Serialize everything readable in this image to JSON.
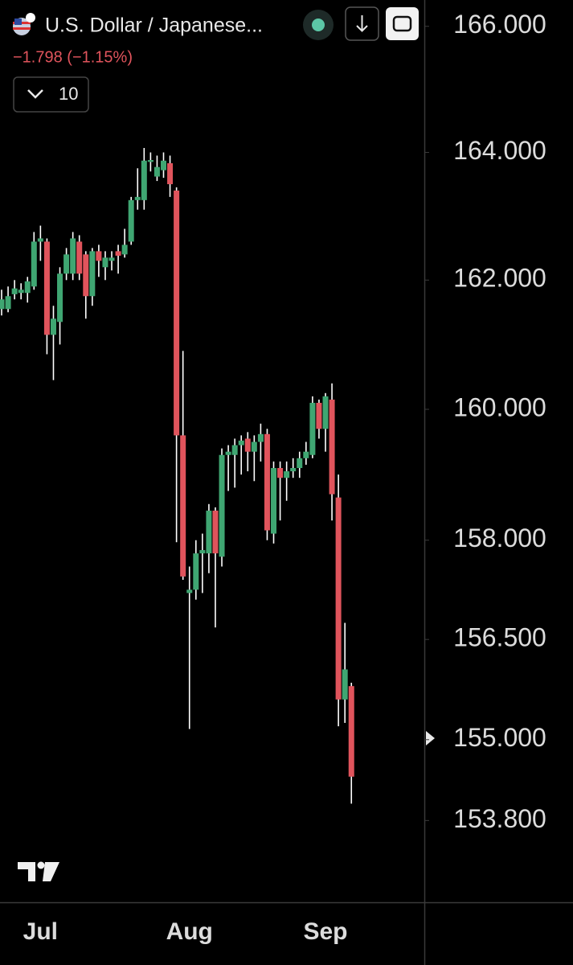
{
  "chart_data": {
    "type": "candlestick",
    "title": "U.S. Dollar / Japanese...",
    "subtitle": "−1.798 (−1.15%)",
    "interval": 10,
    "log_scale": true,
    "up_color": "#3fa672",
    "down_color": "#e0545c",
    "wick_color": "#ffffff",
    "categories": [
      null,
      null,
      null,
      null,
      null,
      null,
      "Jul",
      null,
      null,
      null,
      null,
      null,
      null,
      null,
      null,
      null,
      null,
      null,
      null,
      null,
      null,
      null,
      null,
      null,
      null,
      null,
      null,
      null,
      null,
      "Aug",
      null,
      null,
      null,
      null,
      null,
      null,
      null,
      null,
      null,
      null,
      null,
      null,
      null,
      null,
      null,
      null,
      null,
      null,
      null,
      null,
      "Sep",
      null,
      null,
      null,
      null
    ],
    "open": [
      161.55,
      161.55,
      161.78,
      161.8,
      161.8,
      161.9,
      162.6,
      162.6,
      161.15,
      161.35,
      162.1,
      162.1,
      162.6,
      162.4,
      161.75,
      162.45,
      162.2,
      162.3,
      162.45,
      162.4,
      162.6,
      163.25,
      163.25,
      163.85,
      163.62,
      163.72,
      163.83,
      163.4,
      159.6,
      157.2,
      157.25,
      157.8,
      157.8,
      158.45,
      157.75,
      159.3,
      159.3,
      159.45,
      159.55,
      159.35,
      159.5,
      159.62,
      158.1,
      159.1,
      158.95,
      159.05,
      159.1,
      159.25,
      159.3,
      160.1,
      159.7,
      160.15,
      158.65,
      155.6,
      155.8
    ],
    "high": [
      161.85,
      161.9,
      162.0,
      161.95,
      162.05,
      162.75,
      162.85,
      162.65,
      161.6,
      162.2,
      162.5,
      162.75,
      162.7,
      162.45,
      162.5,
      162.55,
      162.45,
      162.45,
      162.55,
      162.8,
      163.3,
      163.75,
      164.07,
      164.0,
      163.95,
      164.0,
      163.95,
      163.45,
      160.9,
      157.6,
      158.0,
      158.1,
      158.55,
      158.5,
      159.4,
      159.45,
      159.55,
      159.6,
      159.65,
      159.6,
      159.78,
      159.7,
      159.2,
      159.2,
      159.2,
      159.25,
      159.35,
      159.5,
      160.2,
      160.15,
      160.25,
      160.4,
      159.0,
      156.75,
      155.85
    ],
    "low": [
      161.45,
      161.5,
      161.7,
      161.7,
      161.65,
      161.85,
      162.3,
      160.85,
      160.45,
      161.0,
      162.0,
      162.0,
      162.0,
      161.4,
      161.6,
      162.05,
      162.0,
      162.15,
      162.1,
      162.35,
      162.55,
      163.1,
      163.1,
      163.7,
      163.55,
      163.6,
      163.3,
      157.97,
      157.4,
      155.16,
      157.1,
      157.2,
      157.5,
      156.68,
      157.6,
      158.75,
      158.8,
      159.0,
      159.05,
      158.9,
      159.2,
      158.0,
      157.95,
      158.3,
      158.6,
      158.95,
      158.95,
      159.15,
      159.25,
      159.55,
      159.35,
      158.3,
      155.2,
      155.25,
      154.05
    ],
    "close": [
      161.7,
      161.75,
      161.87,
      161.85,
      161.98,
      162.6,
      162.65,
      161.15,
      161.4,
      162.1,
      162.4,
      162.65,
      162.1,
      161.75,
      162.45,
      162.3,
      162.35,
      162.35,
      162.38,
      162.55,
      163.25,
      163.3,
      163.87,
      163.88,
      163.77,
      163.87,
      163.5,
      159.6,
      157.45,
      157.25,
      157.8,
      157.85,
      158.45,
      157.8,
      159.3,
      159.35,
      159.45,
      159.52,
      159.35,
      159.5,
      159.62,
      158.15,
      159.1,
      158.95,
      159.05,
      159.1,
      159.25,
      159.35,
      160.1,
      159.7,
      160.2,
      158.7,
      155.6,
      156.05,
      154.45
    ],
    "ylim": [
      152.62,
      166.42
    ],
    "yticks": [
      {
        "value": 166,
        "label": "166.000"
      },
      {
        "value": 164,
        "label": "164.000"
      },
      {
        "value": 162,
        "label": "162.000"
      },
      {
        "value": 160,
        "label": "160.000"
      },
      {
        "value": 158,
        "label": "158.000"
      },
      {
        "value": 156.5,
        "label": "156.500"
      },
      {
        "value": 155,
        "label": "155.000"
      },
      {
        "value": 153.8,
        "label": "153.800"
      }
    ]
  }
}
